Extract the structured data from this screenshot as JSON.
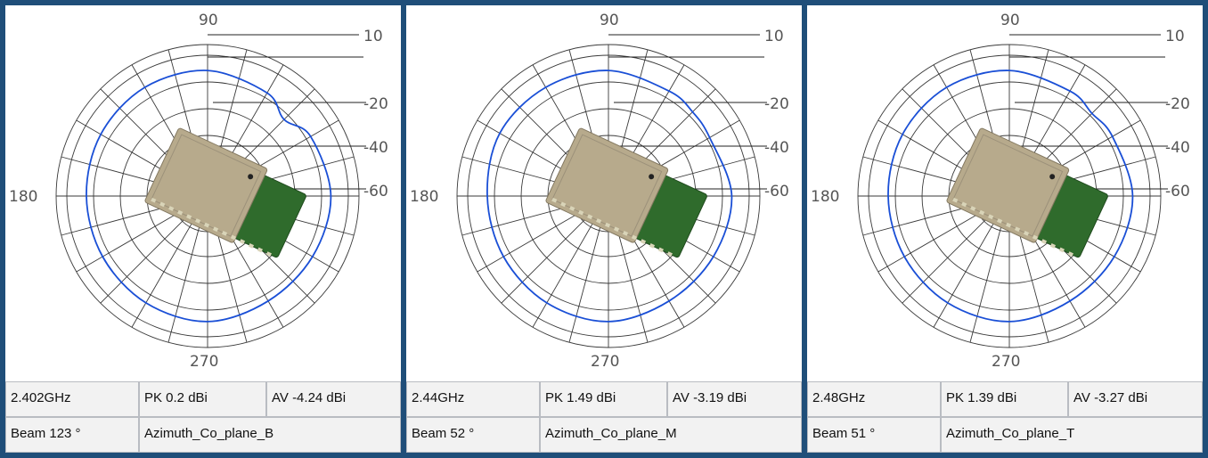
{
  "panels": [
    {
      "freq": "2.402GHz",
      "pk": "PK 0.2 dBi",
      "av": "AV -4.24 dBi",
      "beam": "Beam 123 °",
      "plane": "Azimuth_Co_plane_B"
    },
    {
      "freq": "2.44GHz",
      "pk": "PK 1.49 dBi",
      "av": "AV -3.19 dBi",
      "beam": "Beam 52 °",
      "plane": "Azimuth_Co_plane_M"
    },
    {
      "freq": "2.48GHz",
      "pk": "PK 1.39 dBi",
      "av": "AV -3.27 dBi",
      "beam": "Beam 51 °",
      "plane": "Azimuth_Co_plane_T"
    }
  ],
  "chart_data": [
    {
      "type": "polar",
      "angle_labels": [
        "90",
        "180",
        "270"
      ],
      "radial_labels": [
        "10",
        "-20",
        "-40",
        "-60"
      ],
      "series": [
        {
          "color": "#1a4fd6",
          "angle_deg": [
            0,
            30,
            60,
            90,
            120,
            135,
            150,
            180,
            210,
            240,
            270,
            300,
            330
          ],
          "gain_dbi": [
            -4,
            -3,
            -2,
            -2,
            -5,
            -10,
            -5,
            -3,
            -4,
            -4,
            -2,
            -3,
            -4
          ]
        }
      ]
    },
    {
      "type": "polar",
      "angle_labels": [
        "90",
        "180",
        "270"
      ],
      "radial_labels": [
        "10",
        "-20",
        "-40",
        "-60"
      ],
      "series": [
        {
          "color": "#1a4fd6",
          "angle_deg": [
            0,
            30,
            60,
            90,
            120,
            135,
            150,
            180,
            210,
            240,
            270,
            300,
            330
          ],
          "gain_dbi": [
            -4,
            -2,
            -2,
            -2,
            -4,
            -5,
            -6,
            -3,
            -4,
            -4,
            -2,
            -3,
            -4
          ]
        }
      ]
    },
    {
      "type": "polar",
      "angle_labels": [
        "90",
        "180",
        "270"
      ],
      "radial_labels": [
        "10",
        "-20",
        "-40",
        "-60"
      ],
      "series": [
        {
          "color": "#1a4fd6",
          "angle_deg": [
            0,
            30,
            60,
            90,
            120,
            135,
            150,
            180,
            210,
            240,
            270,
            300,
            330
          ],
          "gain_dbi": [
            -4,
            -3,
            -2,
            -2,
            -4,
            -6,
            -5,
            -3,
            -4,
            -4,
            -2,
            -3,
            -4
          ]
        }
      ]
    }
  ]
}
